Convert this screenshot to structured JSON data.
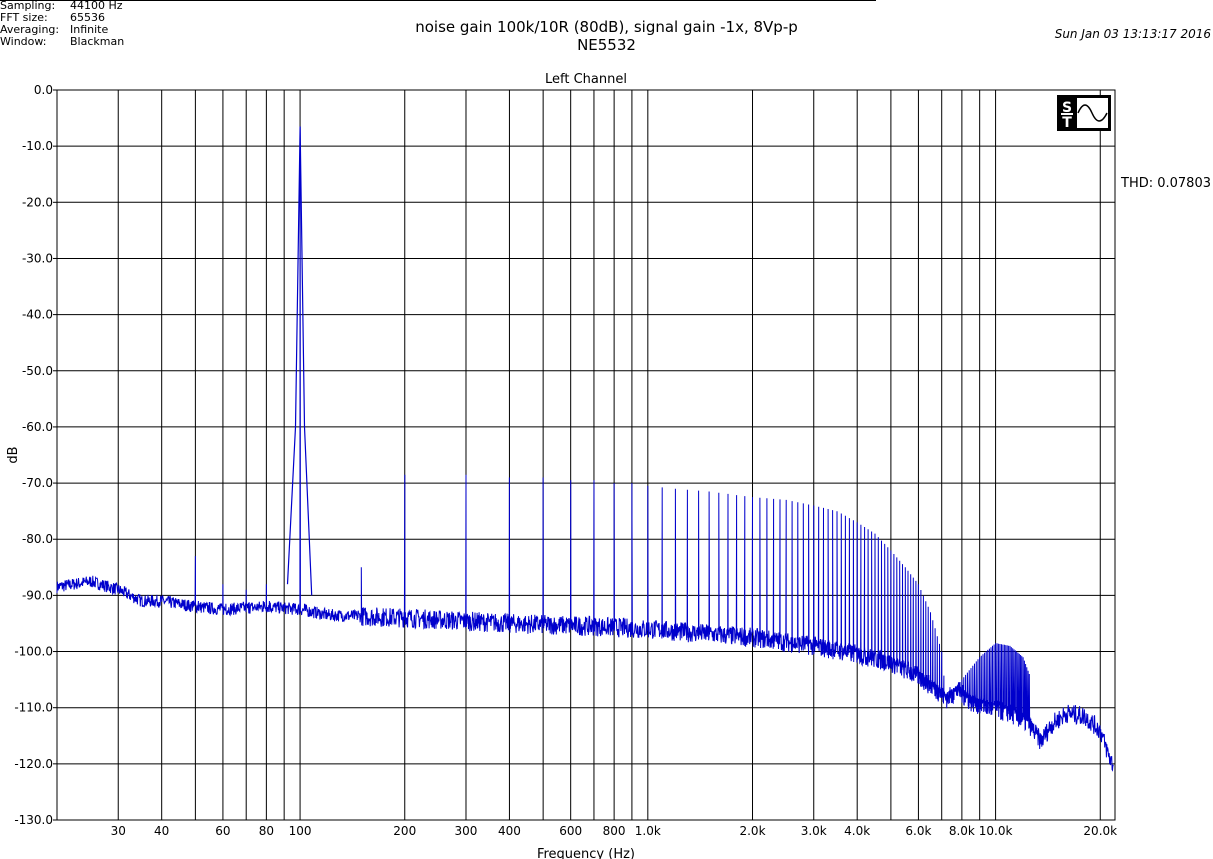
{
  "meta": {
    "rows": [
      {
        "label": "Sampling:",
        "value": "44100 Hz"
      },
      {
        "label": "FFT size:",
        "value": "65536"
      },
      {
        "label": "Averaging:",
        "value": "Infinite"
      },
      {
        "label": "Window:",
        "value": "Blackman"
      }
    ]
  },
  "header": {
    "title_line1": "noise gain 100k/10R (80dB), signal gain -1x, 8Vp-p",
    "title_line2": "NE5532",
    "date": "Sun Jan 03 13:13:17 2016",
    "thd": "THD: 0.07803",
    "channel": "Left Channel"
  },
  "logo": {
    "name": "st-logo-icon"
  },
  "chart_data": {
    "type": "line",
    "title": "Left Channel",
    "xlabel": "Frequency (Hz)",
    "ylabel": "dB",
    "xscale": "log",
    "xlim": [
      20,
      22050
    ],
    "ylim": [
      -130,
      0
    ],
    "yticks": [
      "0.0",
      "-10.0",
      "-20.0",
      "-30.0",
      "-40.0",
      "-50.0",
      "-60.0",
      "-70.0",
      "-80.0",
      "-90.0",
      "-100.0",
      "-110.0",
      "-120.0",
      "-130.0"
    ],
    "ytick_values": [
      0,
      -10,
      -20,
      -30,
      -40,
      -50,
      -60,
      -70,
      -80,
      -90,
      -100,
      -110,
      -120,
      -130
    ],
    "xticks": [
      {
        "v": 30,
        "l": "30"
      },
      {
        "v": 40,
        "l": "40"
      },
      {
        "v": 60,
        "l": "60"
      },
      {
        "v": 80,
        "l": "80"
      },
      {
        "v": 100,
        "l": "100"
      },
      {
        "v": 200,
        "l": "200"
      },
      {
        "v": 300,
        "l": "300"
      },
      {
        "v": 400,
        "l": "400"
      },
      {
        "v": 600,
        "l": "600"
      },
      {
        "v": 800,
        "l": "800"
      },
      {
        "v": 1000,
        "l": "1.0k"
      },
      {
        "v": 2000,
        "l": "2.0k"
      },
      {
        "v": 3000,
        "l": "3.0k"
      },
      {
        "v": 4000,
        "l": "4.0k"
      },
      {
        "v": 6000,
        "l": "6.0k"
      },
      {
        "v": 8000,
        "l": "8.0k"
      },
      {
        "v": 10000,
        "l": "10.0k"
      },
      {
        "v": 20000,
        "l": "20.0k"
      }
    ],
    "xgrid": [
      30,
      40,
      50,
      60,
      70,
      80,
      90,
      100,
      200,
      300,
      400,
      500,
      600,
      700,
      800,
      900,
      1000,
      2000,
      3000,
      4000,
      5000,
      6000,
      7000,
      8000,
      9000,
      10000,
      20000
    ],
    "grid": true,
    "series_color": "#0000cc",
    "noise_floor": [
      [
        20,
        -88.5
      ],
      [
        25,
        -87.5
      ],
      [
        30,
        -89
      ],
      [
        35,
        -91
      ],
      [
        40,
        -91
      ],
      [
        50,
        -92
      ],
      [
        60,
        -92.5
      ],
      [
        80,
        -92
      ],
      [
        100,
        -92.5
      ],
      [
        120,
        -93.5
      ],
      [
        200,
        -94
      ],
      [
        400,
        -95
      ],
      [
        700,
        -95.5
      ],
      [
        1000,
        -96
      ],
      [
        2000,
        -97.5
      ],
      [
        3000,
        -99
      ],
      [
        4000,
        -100.5
      ],
      [
        5000,
        -102
      ],
      [
        6000,
        -104.5
      ],
      [
        6800,
        -107
      ],
      [
        7200,
        -108.5
      ],
      [
        7800,
        -107
      ],
      [
        8500,
        -109
      ],
      [
        9500,
        -110
      ],
      [
        11000,
        -111
      ],
      [
        12500,
        -113
      ],
      [
        13500,
        -116
      ],
      [
        14500,
        -113
      ],
      [
        16000,
        -111
      ],
      [
        18000,
        -111.5
      ],
      [
        20000,
        -114
      ],
      [
        21000,
        -118
      ],
      [
        22000,
        -121
      ]
    ],
    "fundamental": {
      "freq": 100,
      "level": -6.5
    },
    "spurs": [
      [
        50,
        -83
      ],
      [
        60,
        -88
      ],
      [
        70,
        -89
      ],
      [
        80,
        -88
      ],
      [
        150,
        -85
      ]
    ],
    "harmonic_peaks": [
      [
        200,
        -68.5
      ],
      [
        300,
        -68.5
      ],
      [
        400,
        -69
      ],
      [
        500,
        -69
      ],
      [
        600,
        -69.5
      ],
      [
        700,
        -69.5
      ],
      [
        800,
        -70
      ],
      [
        900,
        -70
      ],
      [
        1000,
        -70.5
      ],
      [
        1200,
        -71
      ],
      [
        1500,
        -71.5
      ],
      [
        2000,
        -72.5
      ],
      [
        2500,
        -73
      ],
      [
        3000,
        -74
      ],
      [
        3500,
        -75
      ],
      [
        4000,
        -77
      ],
      [
        4500,
        -79
      ],
      [
        5000,
        -82
      ],
      [
        5500,
        -85
      ],
      [
        6000,
        -88
      ],
      [
        6500,
        -93
      ],
      [
        7000,
        -100
      ],
      [
        7200,
        -108.5
      ],
      [
        8000,
        -105
      ],
      [
        9000,
        -101
      ],
      [
        10000,
        -98.5
      ],
      [
        11000,
        -99
      ],
      [
        12000,
        -101
      ],
      [
        12500,
        -104
      ]
    ]
  }
}
